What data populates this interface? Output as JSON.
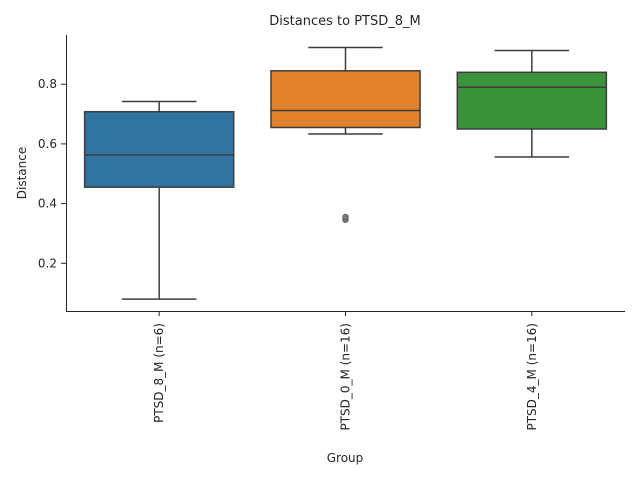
{
  "chart_data": {
    "type": "box",
    "title": "Distances to PTSD_8_M",
    "xlabel": "Group",
    "ylabel": "Distance",
    "ylim": [
      0.04,
      0.965
    ],
    "yticks": [
      0.2,
      0.4,
      0.6,
      0.8
    ],
    "ytick_labels": [
      "0.2",
      "0.4",
      "0.6",
      "0.8"
    ],
    "grid": false,
    "boxes": [
      {
        "label": "PTSD_8_M (n=6)",
        "color": "#3274a1",
        "whisker_low": 0.08,
        "q1": 0.455,
        "median": 0.563,
        "q3": 0.708,
        "whisker_high": 0.742,
        "outliers": []
      },
      {
        "label": "PTSD_0_M (n=16)",
        "color": "#e1812c",
        "whisker_low": 0.633,
        "q1": 0.655,
        "median": 0.712,
        "q3": 0.845,
        "whisker_high": 0.923,
        "outliers": [
          0.346,
          0.355
        ]
      },
      {
        "label": "PTSD_4_M (n=16)",
        "color": "#3a923a",
        "whisker_low": 0.556,
        "q1": 0.65,
        "median": 0.79,
        "q3": 0.84,
        "whisker_high": 0.913,
        "outliers": []
      }
    ]
  }
}
